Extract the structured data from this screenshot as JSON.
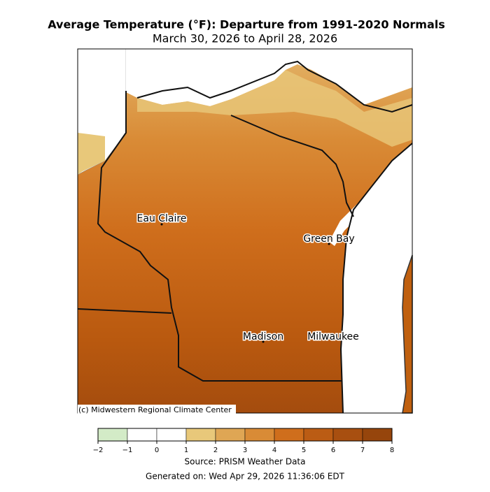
{
  "header": {
    "title": "Average Temperature (°F): Departure from 1991-2020 Normals",
    "subtitle": "March 30, 2026 to April 28, 2026"
  },
  "map": {
    "cities": [
      "Eau Claire",
      "Green Bay",
      "Madison",
      "Milwaukee"
    ],
    "credit": "(c) Midwestern Regional Climate Center"
  },
  "colorbar": {
    "ticks": [
      {
        "value": -2,
        "label": "−2"
      },
      {
        "value": -1,
        "label": "−1"
      },
      0,
      1,
      2,
      3,
      4,
      5,
      6,
      7,
      8
    ],
    "colors": [
      "#d3ebc7",
      "#ffffff",
      "#ffffff",
      "#e8c87a",
      "#dfa654",
      "#d98b36",
      "#cf6e1c",
      "#bb5c14",
      "#a84f10",
      "#96450c"
    ]
  },
  "footer": {
    "source": "Source: PRISM Weather Data",
    "generated": "Generated on: Wed Apr 29, 2026 11:36:06 EDT"
  }
}
